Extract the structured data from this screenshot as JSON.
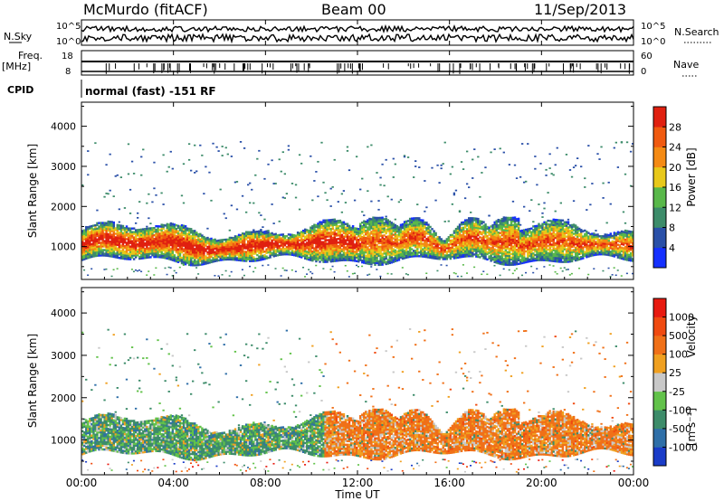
{
  "header": {
    "station": "McMurdo (fitACF)",
    "beam": "Beam 00",
    "date": "11/Sep/2013"
  },
  "panels": {
    "nsky_label": "N.Sky",
    "nsearch_label": "N.Search",
    "nsky_ticks": [
      "10^5",
      "10^0"
    ],
    "freq_label_1": "Freq.",
    "freq_label_2": "[MHz]",
    "freq_ticks": [
      "18",
      "8"
    ],
    "nave_label": "Nave",
    "nave_ticks": [
      "60",
      "0"
    ],
    "cpid_label": "CPID",
    "cpid_text": "normal (fast) -151 RF"
  },
  "chart_data": [
    {
      "type": "heatmap",
      "title": "",
      "xlabel": "Time UT",
      "ylabel": "Slant Range [km]",
      "x_ticks": [
        "00:00",
        "04:00",
        "08:00",
        "12:00",
        "16:00",
        "20:00",
        "00:00"
      ],
      "y_ticks": [
        1000,
        2000,
        3000,
        4000
      ],
      "ylim": [
        180,
        4600
      ],
      "colorbar": {
        "label": "Power [dB]",
        "ticks": [
          "4",
          "8",
          "12",
          "16",
          "20",
          "24",
          "28"
        ],
        "colors": [
          "#1530ff",
          "#2a50a8",
          "#3d8c6a",
          "#59b84a",
          "#e8c81a",
          "#f48a14",
          "#f05a10",
          "#e02010"
        ]
      },
      "series_summary": "Dense backscatter band centred ~1000 km slant range across 00:00-24:00 UT, strongest (24-28 dB) 00:00-12:00; sparse scatter up to ~3500 km"
    },
    {
      "type": "heatmap",
      "title": "",
      "xlabel": "Time UT",
      "ylabel": "Slant Range [km]",
      "x_ticks": [
        "00:00",
        "04:00",
        "08:00",
        "12:00",
        "16:00",
        "20:00",
        "00:00"
      ],
      "y_ticks": [
        1000,
        2000,
        3000,
        4000
      ],
      "ylim": [
        180,
        4600
      ],
      "colorbar": {
        "label": "Velocity",
        "unit": "[m s⁻¹]",
        "ticks": [
          "1000",
          "500",
          "100",
          "25",
          "-25",
          "-100",
          "-500",
          "-1000"
        ],
        "colors": [
          "#1a3cc8",
          "#2f6fa8",
          "#3d8c6a",
          "#62c24a",
          "#c8c8c8",
          "#f0a020",
          "#f07018",
          "#f04a10",
          "#e81a10"
        ]
      },
      "series_summary": "Positive velocities (green) 00:00-10:30 UT, negative velocities (orange) 10:30-24:00 UT in band ~600-1800 km"
    }
  ]
}
